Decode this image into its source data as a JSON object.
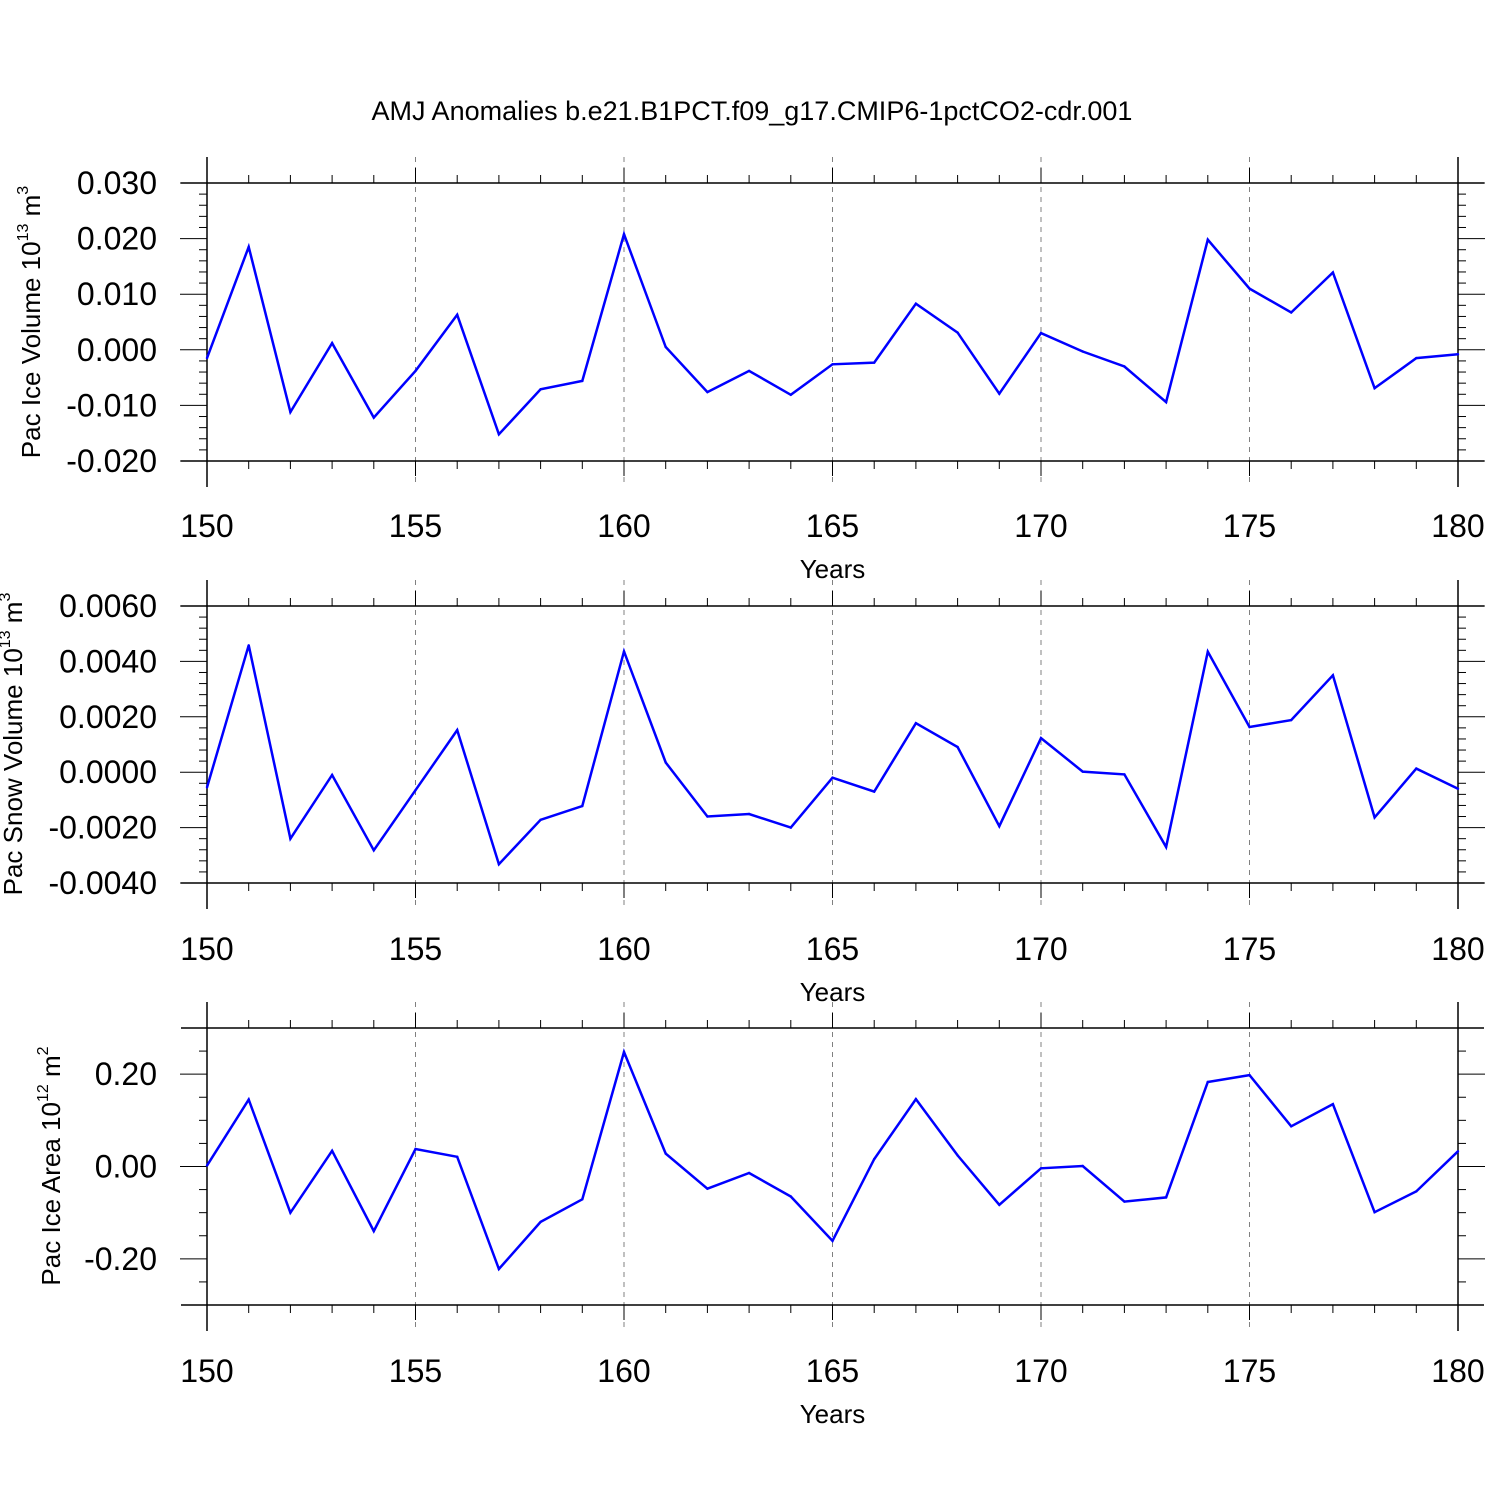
{
  "figure_title": "AMJ Anomalies b.e21.B1PCT.f09_g17.CMIP6-1pctCO2-cdr.001",
  "colors": {
    "line": "#0000ff",
    "axis": "#000000",
    "grid": "#808080"
  },
  "chart_data": [
    {
      "type": "line",
      "title": "",
      "xlabel": "Years",
      "ylabel": {
        "text": "Pac Ice Volume 10",
        "exponent": "13",
        "unit": " m",
        "unit_exponent": "3"
      },
      "xlim": [
        150,
        180
      ],
      "ylim": [
        -0.02,
        0.03
      ],
      "x_ticks": [
        150,
        155,
        160,
        165,
        170,
        175,
        180
      ],
      "x_tick_labels": [
        "150",
        "155",
        "160",
        "165",
        "170",
        "175",
        "180"
      ],
      "y_ticks": [
        -0.02,
        -0.01,
        0.0,
        0.01,
        0.02,
        0.03
      ],
      "y_tick_labels": [
        "-0.020",
        "-0.010",
        "0.000",
        "0.010",
        "0.020",
        "0.030"
      ],
      "y_minor_step": 0.002,
      "grid": "vertical-dashed",
      "x": [
        150,
        151,
        152,
        153,
        154,
        155,
        156,
        157,
        158,
        159,
        160,
        161,
        162,
        163,
        164,
        165,
        166,
        167,
        168,
        169,
        170,
        171,
        172,
        173,
        174,
        175,
        176,
        177,
        178,
        179,
        180
      ],
      "series": [
        {
          "name": "Pac Ice Volume",
          "values": [
            -0.0015,
            0.0185,
            -0.0112,
            0.0012,
            -0.0122,
            -0.0038,
            0.0063,
            -0.0152,
            -0.0071,
            -0.0056,
            0.0208,
            0.0005,
            -0.0076,
            -0.0038,
            -0.0081,
            -0.0026,
            -0.0023,
            0.0083,
            0.0031,
            -0.0079,
            0.003,
            -0.0003,
            -0.003,
            -0.0094,
            0.0198,
            0.011,
            0.0067,
            0.0139,
            -0.0069,
            -0.0015,
            -0.0008
          ]
        }
      ]
    },
    {
      "type": "line",
      "title": "",
      "xlabel": "Years",
      "ylabel": {
        "text": "Pac Snow Volume 10",
        "exponent": "13",
        "unit": " m",
        "unit_exponent": "3"
      },
      "xlim": [
        150,
        180
      ],
      "ylim": [
        -0.004,
        0.006
      ],
      "x_ticks": [
        150,
        155,
        160,
        165,
        170,
        175,
        180
      ],
      "x_tick_labels": [
        "150",
        "155",
        "160",
        "165",
        "170",
        "175",
        "180"
      ],
      "y_ticks": [
        -0.004,
        -0.002,
        0.0,
        0.002,
        0.004,
        0.006
      ],
      "y_tick_labels": [
        "-0.0040",
        "-0.0020",
        "0.0000",
        "0.0020",
        "0.0040",
        "0.0060"
      ],
      "y_minor_step": 0.0004,
      "grid": "vertical-dashed",
      "x": [
        150,
        151,
        152,
        153,
        154,
        155,
        156,
        157,
        158,
        159,
        160,
        161,
        162,
        163,
        164,
        165,
        166,
        167,
        168,
        169,
        170,
        171,
        172,
        173,
        174,
        175,
        176,
        177,
        178,
        179,
        180
      ],
      "series": [
        {
          "name": "Pac Snow Volume",
          "values": [
            -0.00055,
            0.00458,
            -0.0024,
            -0.0001,
            -0.00282,
            -0.00065,
            0.00152,
            -0.00332,
            -0.00172,
            -0.00122,
            0.00436,
            0.00035,
            -0.0016,
            -0.00151,
            -0.002,
            -0.0002,
            -0.0007,
            0.00177,
            0.00091,
            -0.00195,
            0.00123,
            2e-05,
            -8e-05,
            -0.0027,
            0.00435,
            0.00163,
            0.00188,
            0.0035,
            -0.00163,
            0.00013,
            -0.0006
          ]
        }
      ]
    },
    {
      "type": "line",
      "title": "",
      "xlabel": "Years",
      "ylabel": {
        "text": "Pac Ice Area 10",
        "exponent": "12",
        "unit": " m",
        "unit_exponent": "2"
      },
      "xlim": [
        150,
        180
      ],
      "ylim": [
        -0.3,
        0.3
      ],
      "x_ticks": [
        150,
        155,
        160,
        165,
        170,
        175,
        180
      ],
      "x_tick_labels": [
        "150",
        "155",
        "160",
        "165",
        "170",
        "175",
        "180"
      ],
      "y_ticks": [
        -0.2,
        0.0,
        0.2
      ],
      "y_tick_labels": [
        "-0.20",
        "0.00",
        "0.20"
      ],
      "y_minor_step": 0.05,
      "grid": "vertical-dashed",
      "x": [
        150,
        151,
        152,
        153,
        154,
        155,
        156,
        157,
        158,
        159,
        160,
        161,
        162,
        163,
        164,
        165,
        166,
        167,
        168,
        169,
        170,
        171,
        172,
        173,
        174,
        175,
        176,
        177,
        178,
        179,
        180
      ],
      "series": [
        {
          "name": "Pac Ice Area",
          "values": [
            0.002,
            0.145,
            -0.1,
            0.034,
            -0.14,
            0.038,
            0.021,
            -0.222,
            -0.12,
            -0.071,
            0.248,
            0.028,
            -0.048,
            -0.014,
            -0.065,
            -0.161,
            0.016,
            0.146,
            0.024,
            -0.083,
            -0.004,
            0.001,
            -0.076,
            -0.067,
            0.183,
            0.198,
            0.087,
            0.135,
            -0.099,
            -0.054,
            0.033
          ]
        }
      ]
    }
  ]
}
